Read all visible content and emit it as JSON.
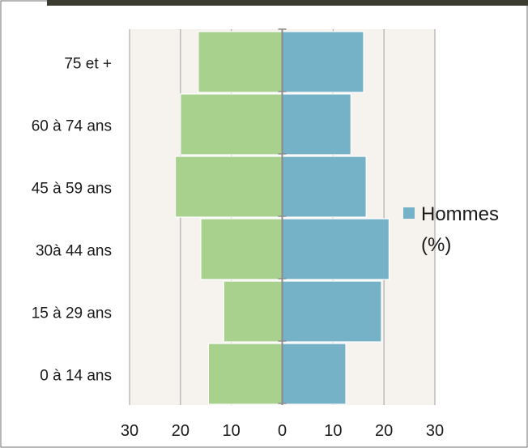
{
  "chart_data": {
    "type": "bar",
    "orientation": "horizontal",
    "layout": "population-pyramid",
    "categories": [
      "0 à 14 ans",
      "15 à 29 ans",
      "30à 44 ans",
      "45 à 59 ans",
      "60 à 74 ans",
      "75 et +"
    ],
    "series": [
      {
        "side": "left",
        "values": [
          14.5,
          11.5,
          16,
          21,
          20,
          16.5
        ],
        "color": "#a9d18e"
      },
      {
        "name": "Hommes (%)",
        "side": "right",
        "values": [
          12.5,
          19.5,
          21,
          16.5,
          13.5,
          16
        ],
        "color": "#75b2c8"
      }
    ],
    "xlim": [
      -30,
      30
    ],
    "x_ticks": [
      -30,
      -20,
      -10,
      0,
      10,
      20,
      30
    ],
    "x_tick_labels": [
      "30",
      "20",
      "10",
      "0",
      "10",
      "20",
      "30"
    ],
    "grid": true,
    "legend": {
      "position": "right",
      "entries": [
        "Hommes",
        "(%)"
      ]
    },
    "colors": {
      "plot_background": "#f6f2ee",
      "grid": "#b3b3b3",
      "top_band": "#3b3b30"
    }
  }
}
